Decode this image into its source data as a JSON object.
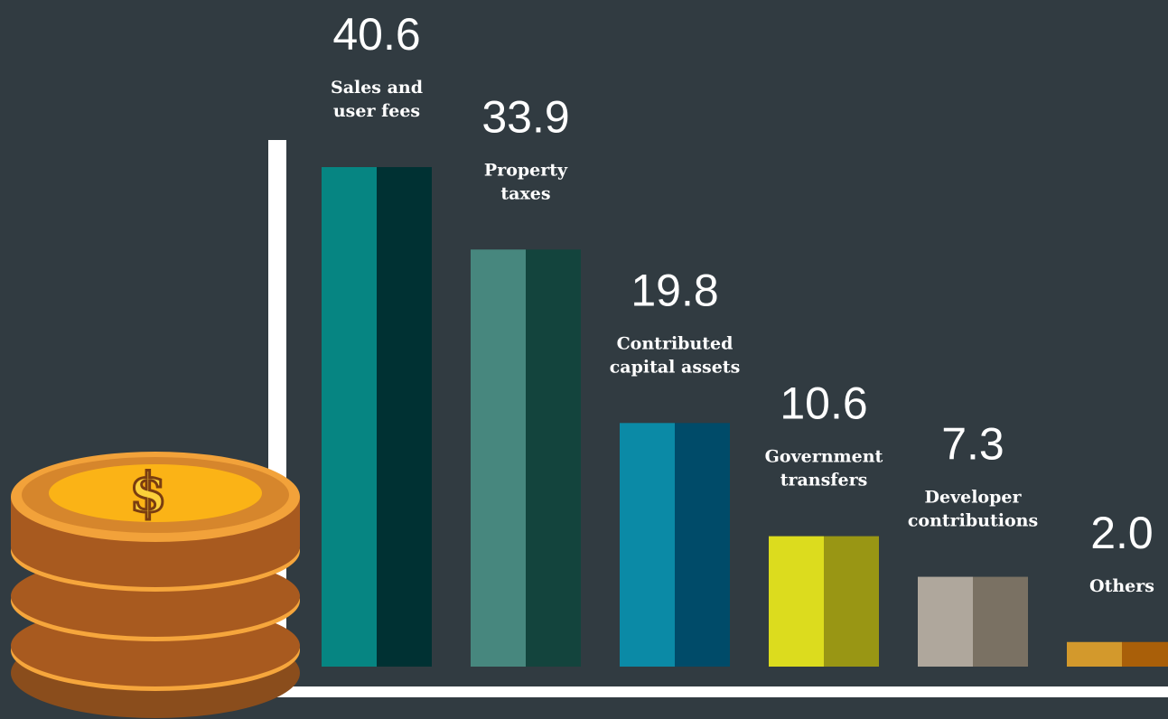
{
  "chart_data": {
    "type": "bar",
    "categories": [
      [
        "Sales and",
        "user fees"
      ],
      [
        "Property",
        "taxes"
      ],
      [
        "Contributed",
        "capital assets"
      ],
      [
        "Government",
        "transfers"
      ],
      [
        "Developer",
        "contributions"
      ],
      [
        "Others"
      ]
    ],
    "values": [
      40.6,
      33.9,
      19.8,
      10.6,
      7.3,
      2.0
    ],
    "value_labels": [
      "40.6",
      "33.9",
      "19.8",
      "10.6",
      "7.3",
      "2.0"
    ],
    "colors": [
      [
        "#068582",
        "#003133"
      ],
      [
        "#47877e",
        "#13443d"
      ],
      [
        "#0b8aa6",
        "#004b69"
      ],
      [
        "#dcdc1e",
        "#999614"
      ],
      [
        "#afa79c",
        "#7a7163"
      ],
      [
        "#d3992c",
        "#a95f09"
      ]
    ]
  }
}
